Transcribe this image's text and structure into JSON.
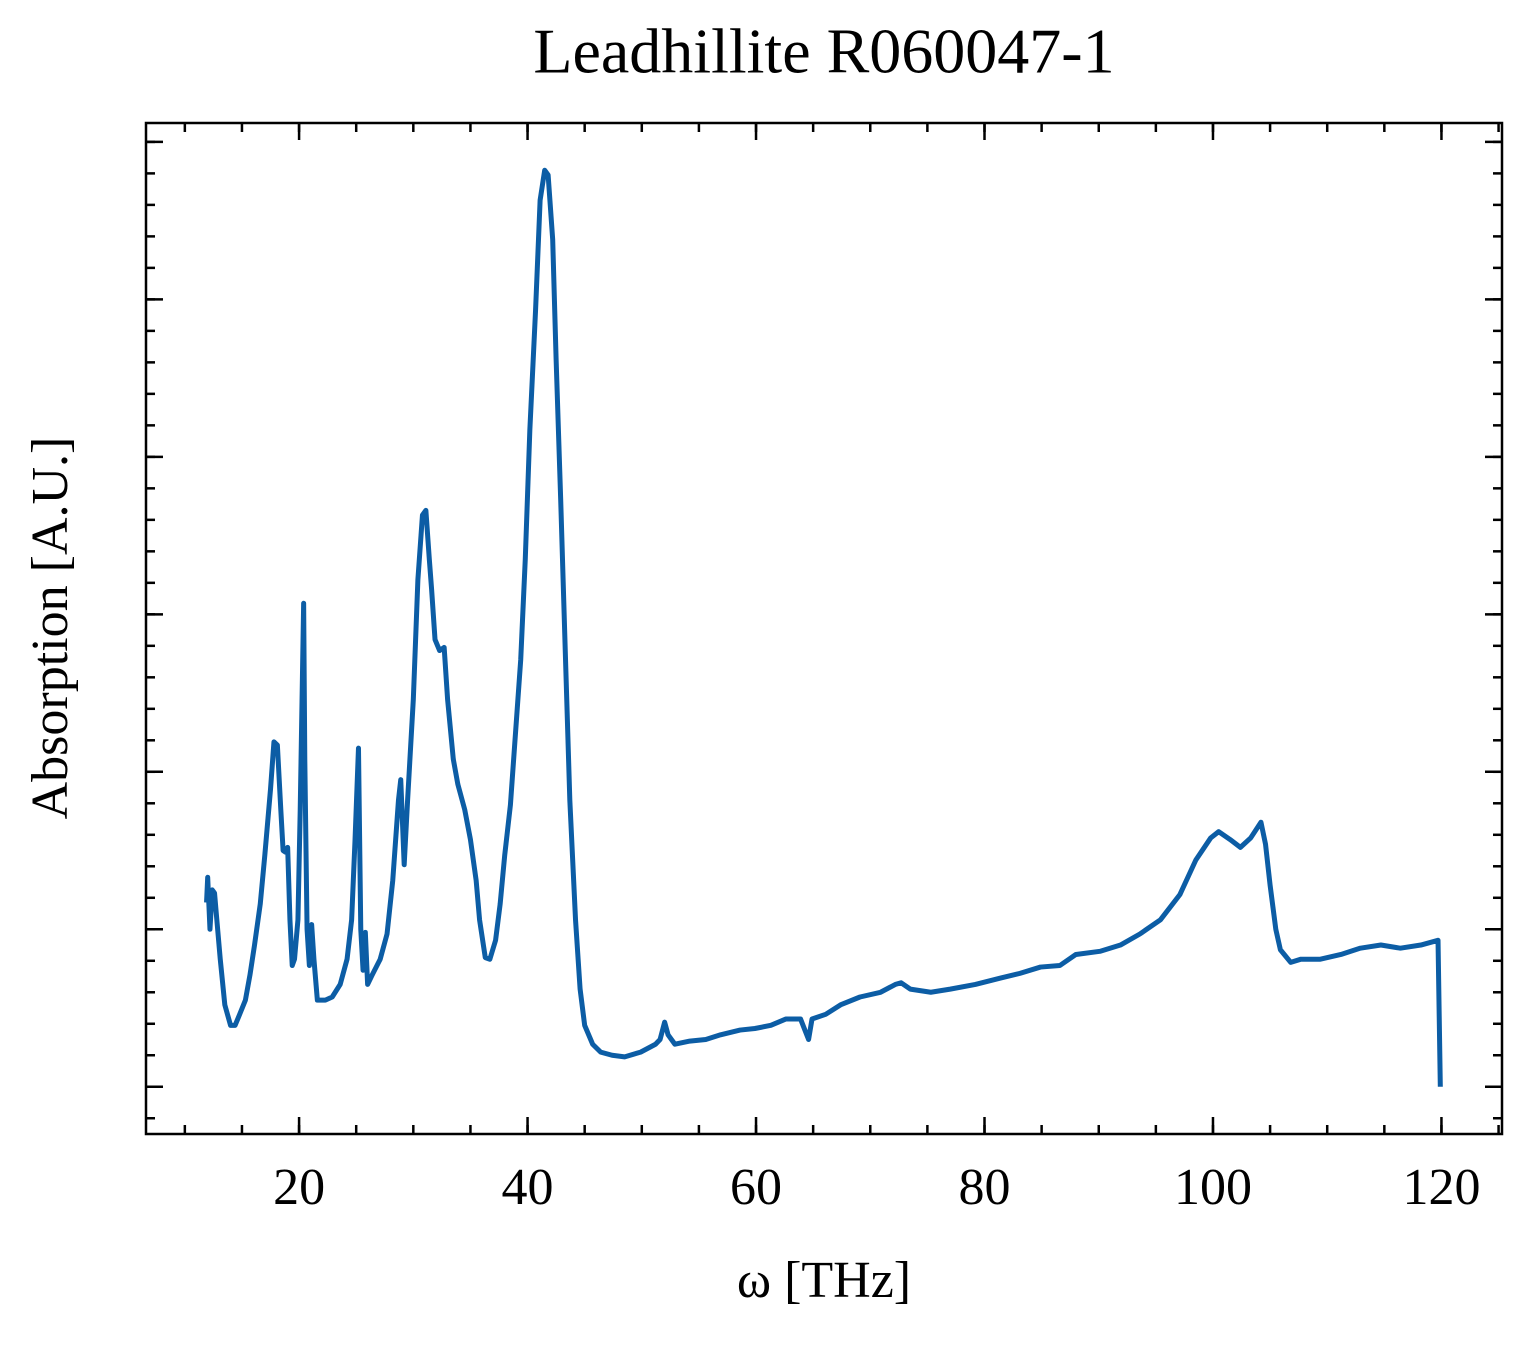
{
  "chart_data": {
    "type": "line",
    "title": "Leadhillite R060047-1",
    "x_label": "ω [THz]",
    "y_label": "Absorption [A.U.]",
    "xlim": [
      6.6,
      125.3
    ],
    "xticks": [
      20,
      40,
      60,
      80,
      100,
      120
    ],
    "ylim": [
      -0.3,
      6.12
    ],
    "yticks": [
      0,
      1,
      2,
      3,
      4,
      5,
      6
    ],
    "grid": false,
    "series": [
      {
        "color": "#0C5DA5",
        "x": [
          11.9,
          12.0,
          12.2,
          12.4,
          12.6,
          12.8,
          13.1,
          13.5,
          14.0,
          14.4,
          14.8,
          15.3,
          15.7,
          16.1,
          16.6,
          17.0,
          17.5,
          17.8,
          18.1,
          18.4,
          18.6,
          18.8,
          19.0,
          19.2,
          19.4,
          19.6,
          19.9,
          20.1,
          20.4,
          20.5,
          20.7,
          20.9,
          21.1,
          21.3,
          21.6,
          22.3,
          22.9,
          23.6,
          24.2,
          24.6,
          24.9,
          25.2,
          25.4,
          25.6,
          25.8,
          26.0,
          26.4,
          27.1,
          27.7,
          28.2,
          28.7,
          28.9,
          29.2,
          29.5,
          30.0,
          30.4,
          30.8,
          31.1,
          31.4,
          31.6,
          31.9,
          32.3,
          32.7,
          33.0,
          33.5,
          33.9,
          34.5,
          35.0,
          35.5,
          35.8,
          36.3,
          36.7,
          37.2,
          37.6,
          38.0,
          38.5,
          38.9,
          39.4,
          39.8,
          40.2,
          40.7,
          41.1,
          41.5,
          41.8,
          42.2,
          42.5,
          42.9,
          43.3,
          43.7,
          44.2,
          44.6,
          45.0,
          45.7,
          46.4,
          47.4,
          48.5,
          49.9,
          51.2,
          51.6,
          52.0,
          52.3,
          52.9,
          54.2,
          55.6,
          56.9,
          58.6,
          59.9,
          61.3,
          62.6,
          63.9,
          64.6,
          64.9,
          66.1,
          67.4,
          69.1,
          70.9,
          72.2,
          72.7,
          73.5,
          75.3,
          77.0,
          79.2,
          81.4,
          83.1,
          84.9,
          86.6,
          88.0,
          90.1,
          91.9,
          93.6,
          95.4,
          97.1,
          98.5,
          99.8,
          100.5,
          101.5,
          102.4,
          103.3,
          104.2,
          104.6,
          105.0,
          105.5,
          105.9,
          106.8,
          107.7,
          109.4,
          111.2,
          112.9,
          114.7,
          116.4,
          118.2,
          119.7,
          119.9
        ],
        "values": [
          1.17,
          1.33,
          1.0,
          1.25,
          1.23,
          1.06,
          0.81,
          0.52,
          0.39,
          0.39,
          0.46,
          0.55,
          0.71,
          0.9,
          1.16,
          1.47,
          1.89,
          2.19,
          2.17,
          1.76,
          1.5,
          1.49,
          1.52,
          1.06,
          0.77,
          0.81,
          1.06,
          1.76,
          3.07,
          2.08,
          1.0,
          0.77,
          1.03,
          0.81,
          0.55,
          0.55,
          0.57,
          0.65,
          0.81,
          1.06,
          1.57,
          2.15,
          1.0,
          0.74,
          0.98,
          0.65,
          0.71,
          0.81,
          0.97,
          1.31,
          1.82,
          1.95,
          1.41,
          1.82,
          2.46,
          3.22,
          3.63,
          3.66,
          3.35,
          3.16,
          2.84,
          2.77,
          2.79,
          2.46,
          2.08,
          1.92,
          1.76,
          1.57,
          1.31,
          1.06,
          0.82,
          0.81,
          0.93,
          1.16,
          1.47,
          1.79,
          2.2,
          2.71,
          3.35,
          4.17,
          4.93,
          5.63,
          5.82,
          5.79,
          5.38,
          4.62,
          3.73,
          2.77,
          1.82,
          1.06,
          0.62,
          0.39,
          0.27,
          0.22,
          0.2,
          0.19,
          0.22,
          0.27,
          0.3,
          0.41,
          0.33,
          0.27,
          0.29,
          0.3,
          0.33,
          0.36,
          0.37,
          0.39,
          0.43,
          0.43,
          0.3,
          0.43,
          0.46,
          0.52,
          0.57,
          0.6,
          0.65,
          0.66,
          0.62,
          0.6,
          0.62,
          0.65,
          0.69,
          0.72,
          0.76,
          0.77,
          0.84,
          0.86,
          0.9,
          0.97,
          1.06,
          1.22,
          1.44,
          1.58,
          1.62,
          1.57,
          1.52,
          1.58,
          1.68,
          1.54,
          1.28,
          1.0,
          0.87,
          0.79,
          0.81,
          0.81,
          0.84,
          0.88,
          0.9,
          0.88,
          0.9,
          0.93,
          0.0
        ]
      }
    ]
  }
}
